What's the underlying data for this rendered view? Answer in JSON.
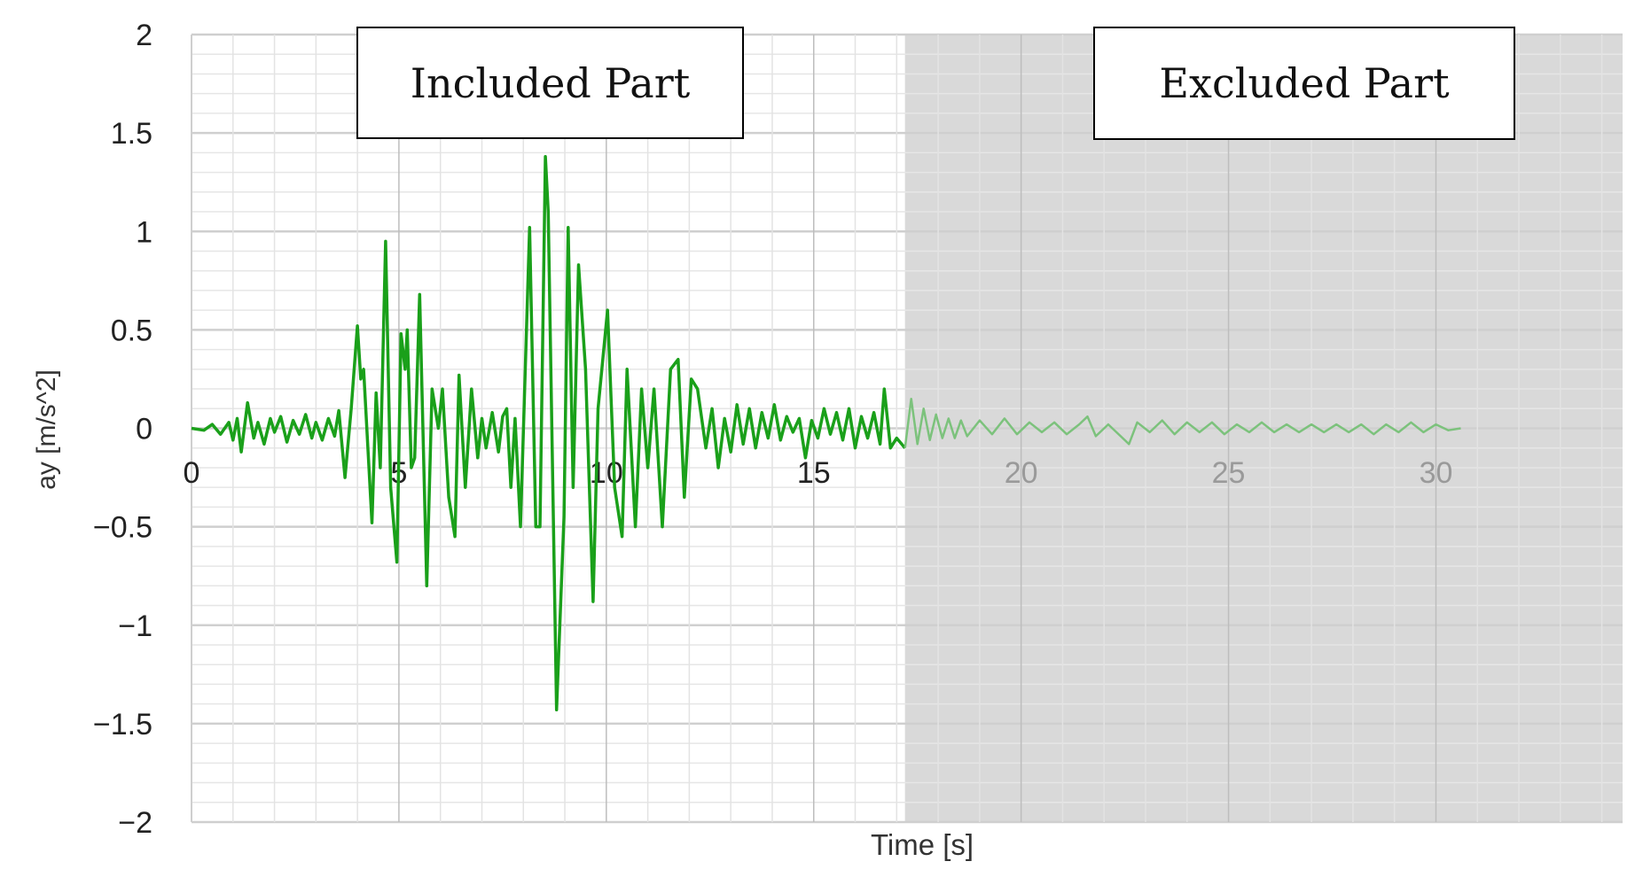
{
  "chart_data": {
    "type": "line",
    "xlabel": "Time [s]",
    "ylabel": "ay [m/s^2]",
    "xlim": [
      0,
      34.5
    ],
    "ylim": [
      -2,
      2
    ],
    "x_ticks": [
      0,
      5,
      10,
      15,
      20,
      25,
      30
    ],
    "y_ticks": [
      2,
      1.5,
      1,
      0.5,
      0,
      -0.5,
      -1,
      -1.5,
      -2
    ],
    "y_tick_labels": [
      "2",
      "1.5",
      "1",
      "0.5",
      "0",
      "−0.5",
      "−1",
      "−1.5",
      "−2"
    ],
    "grid": true,
    "annotations": [
      {
        "label": "Included Part"
      },
      {
        "label": "Excluded Part",
        "shaded_from_x": 17.2,
        "shade_color": "#d9d9d9"
      }
    ],
    "series": [
      {
        "color": "#1aa01a",
        "points": [
          [
            0,
            0
          ],
          [
            0.3,
            -0.01
          ],
          [
            0.5,
            0.02
          ],
          [
            0.7,
            -0.03
          ],
          [
            0.9,
            0.03
          ],
          [
            1.0,
            -0.06
          ],
          [
            1.1,
            0.05
          ],
          [
            1.2,
            -0.12
          ],
          [
            1.35,
            0.13
          ],
          [
            1.5,
            -0.05
          ],
          [
            1.6,
            0.03
          ],
          [
            1.75,
            -0.08
          ],
          [
            1.9,
            0.05
          ],
          [
            2.0,
            -0.02
          ],
          [
            2.15,
            0.06
          ],
          [
            2.3,
            -0.07
          ],
          [
            2.45,
            0.04
          ],
          [
            2.6,
            -0.03
          ],
          [
            2.75,
            0.07
          ],
          [
            2.9,
            -0.05
          ],
          [
            3.0,
            0.03
          ],
          [
            3.15,
            -0.06
          ],
          [
            3.3,
            0.05
          ],
          [
            3.45,
            -0.04
          ],
          [
            3.55,
            0.09
          ],
          [
            3.7,
            -0.25
          ],
          [
            3.85,
            0.1
          ],
          [
            4.0,
            0.52
          ],
          [
            4.08,
            0.25
          ],
          [
            4.15,
            0.3
          ],
          [
            4.35,
            -0.48
          ],
          [
            4.45,
            0.18
          ],
          [
            4.55,
            -0.2
          ],
          [
            4.68,
            0.95
          ],
          [
            4.8,
            -0.3
          ],
          [
            4.95,
            -0.68
          ],
          [
            5.05,
            0.48
          ],
          [
            5.15,
            0.3
          ],
          [
            5.2,
            0.5
          ],
          [
            5.3,
            -0.2
          ],
          [
            5.38,
            -0.15
          ],
          [
            5.5,
            0.68
          ],
          [
            5.67,
            -0.8
          ],
          [
            5.8,
            0.2
          ],
          [
            5.95,
            0.0
          ],
          [
            6.05,
            0.2
          ],
          [
            6.2,
            -0.35
          ],
          [
            6.35,
            -0.55
          ],
          [
            6.45,
            0.27
          ],
          [
            6.6,
            -0.3
          ],
          [
            6.75,
            0.2
          ],
          [
            6.9,
            -0.15
          ],
          [
            7.0,
            0.05
          ],
          [
            7.1,
            -0.1
          ],
          [
            7.25,
            0.08
          ],
          [
            7.4,
            -0.12
          ],
          [
            7.5,
            0.06
          ],
          [
            7.6,
            0.1
          ],
          [
            7.7,
            -0.3
          ],
          [
            7.8,
            0.05
          ],
          [
            7.93,
            -0.5
          ],
          [
            8.15,
            1.02
          ],
          [
            8.3,
            -0.5
          ],
          [
            8.4,
            -0.5
          ],
          [
            8.53,
            1.38
          ],
          [
            8.6,
            1.1
          ],
          [
            8.8,
            -1.43
          ],
          [
            8.98,
            -0.45
          ],
          [
            9.08,
            1.02
          ],
          [
            9.2,
            -0.3
          ],
          [
            9.33,
            0.83
          ],
          [
            9.5,
            0.3
          ],
          [
            9.68,
            -0.88
          ],
          [
            9.8,
            0.1
          ],
          [
            10.03,
            0.6
          ],
          [
            10.2,
            -0.3
          ],
          [
            10.38,
            -0.55
          ],
          [
            10.5,
            0.3
          ],
          [
            10.7,
            -0.5
          ],
          [
            10.85,
            0.2
          ],
          [
            11.0,
            -0.2
          ],
          [
            11.15,
            0.2
          ],
          [
            11.35,
            -0.5
          ],
          [
            11.55,
            0.3
          ],
          [
            11.73,
            0.35
          ],
          [
            11.88,
            -0.35
          ],
          [
            12.05,
            0.25
          ],
          [
            12.2,
            0.2
          ],
          [
            12.4,
            -0.1
          ],
          [
            12.55,
            0.1
          ],
          [
            12.7,
            -0.2
          ],
          [
            12.85,
            0.05
          ],
          [
            13.0,
            -0.12
          ],
          [
            13.15,
            0.12
          ],
          [
            13.3,
            -0.08
          ],
          [
            13.45,
            0.1
          ],
          [
            13.6,
            -0.1
          ],
          [
            13.75,
            0.08
          ],
          [
            13.9,
            -0.05
          ],
          [
            14.05,
            0.12
          ],
          [
            14.2,
            -0.06
          ],
          [
            14.35,
            0.06
          ],
          [
            14.5,
            -0.02
          ],
          [
            14.65,
            0.05
          ],
          [
            14.8,
            -0.15
          ],
          [
            14.95,
            0.04
          ],
          [
            15.1,
            -0.05
          ],
          [
            15.25,
            0.1
          ],
          [
            15.4,
            -0.03
          ],
          [
            15.55,
            0.08
          ],
          [
            15.7,
            -0.06
          ],
          [
            15.85,
            0.1
          ],
          [
            16.0,
            -0.1
          ],
          [
            16.15,
            0.06
          ],
          [
            16.3,
            -0.05
          ],
          [
            16.45,
            0.08
          ],
          [
            16.6,
            -0.08
          ],
          [
            16.7,
            0.2
          ],
          [
            16.85,
            -0.1
          ],
          [
            17.0,
            -0.05
          ],
          [
            17.2,
            -0.1
          ]
        ]
      },
      {
        "color": "#7cc27c",
        "points": [
          [
            17.2,
            -0.1
          ],
          [
            17.35,
            0.15
          ],
          [
            17.5,
            -0.08
          ],
          [
            17.65,
            0.1
          ],
          [
            17.8,
            -0.06
          ],
          [
            17.95,
            0.07
          ],
          [
            18.1,
            -0.05
          ],
          [
            18.25,
            0.05
          ],
          [
            18.4,
            -0.05
          ],
          [
            18.55,
            0.04
          ],
          [
            18.7,
            -0.04
          ],
          [
            19.0,
            0.04
          ],
          [
            19.3,
            -0.03
          ],
          [
            19.6,
            0.05
          ],
          [
            19.9,
            -0.03
          ],
          [
            20.2,
            0.03
          ],
          [
            20.5,
            -0.02
          ],
          [
            20.8,
            0.03
          ],
          [
            21.1,
            -0.03
          ],
          [
            21.4,
            0.02
          ],
          [
            21.6,
            0.06
          ],
          [
            21.8,
            -0.04
          ],
          [
            22.1,
            0.02
          ],
          [
            22.4,
            -0.04
          ],
          [
            22.6,
            -0.08
          ],
          [
            22.8,
            0.03
          ],
          [
            23.1,
            -0.02
          ],
          [
            23.4,
            0.04
          ],
          [
            23.7,
            -0.03
          ],
          [
            24.0,
            0.03
          ],
          [
            24.3,
            -0.02
          ],
          [
            24.6,
            0.03
          ],
          [
            24.9,
            -0.03
          ],
          [
            25.2,
            0.02
          ],
          [
            25.5,
            -0.02
          ],
          [
            25.8,
            0.03
          ],
          [
            26.1,
            -0.02
          ],
          [
            26.4,
            0.02
          ],
          [
            26.7,
            -0.02
          ],
          [
            27.0,
            0.02
          ],
          [
            27.3,
            -0.02
          ],
          [
            27.6,
            0.02
          ],
          [
            27.9,
            -0.02
          ],
          [
            28.2,
            0.02
          ],
          [
            28.5,
            -0.03
          ],
          [
            28.8,
            0.02
          ],
          [
            29.1,
            -0.02
          ],
          [
            29.4,
            0.03
          ],
          [
            29.7,
            -0.02
          ],
          [
            30.0,
            0.02
          ],
          [
            30.3,
            -0.01
          ],
          [
            30.6,
            0
          ]
        ]
      }
    ]
  }
}
